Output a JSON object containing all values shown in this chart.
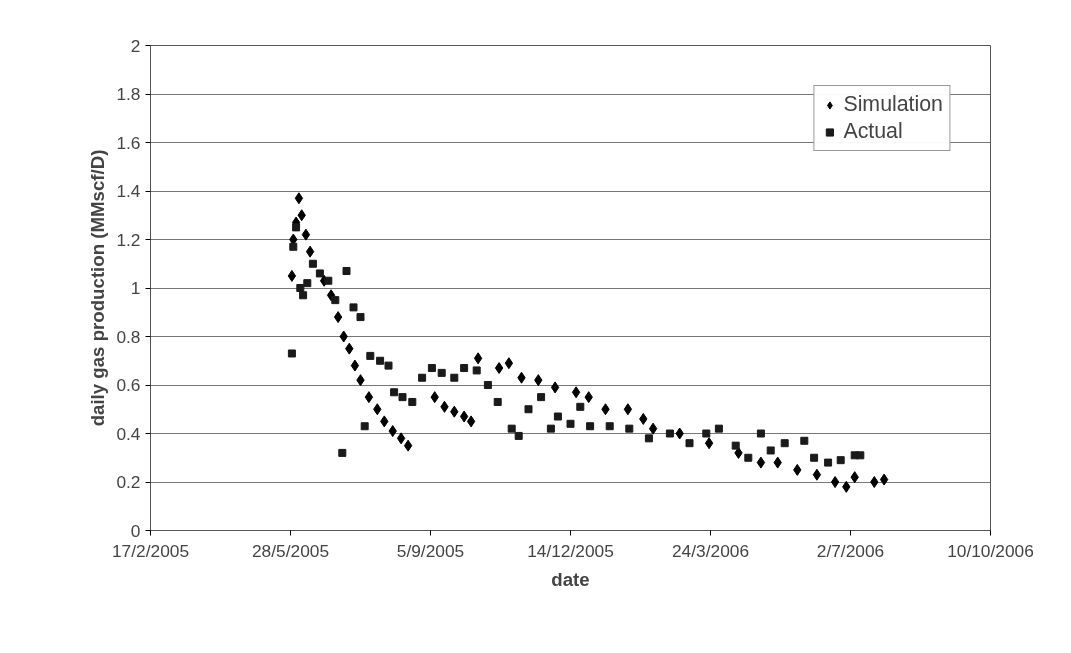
{
  "chart_data": {
    "type": "scatter",
    "xlabel": "date",
    "ylabel": "daily gas production (MMscf/D)",
    "xlim": [
      "2005-02-17",
      "2006-10-10"
    ],
    "xticks": [
      {
        "value": "2005-02-17",
        "label": "17/2/2005"
      },
      {
        "value": "2005-05-28",
        "label": "28/5/2005"
      },
      {
        "value": "2005-09-05",
        "label": "5/9/2005"
      },
      {
        "value": "2005-12-14",
        "label": "14/12/2005"
      },
      {
        "value": "2006-03-24",
        "label": "24/3/2006"
      },
      {
        "value": "2006-07-02",
        "label": "2/7/2006"
      },
      {
        "value": "2006-10-10",
        "label": "10/10/2006"
      }
    ],
    "ylim": [
      0,
      2
    ],
    "yticks": [
      0,
      0.2,
      0.4,
      0.6,
      0.8,
      1,
      1.2,
      1.4,
      1.6,
      1.8,
      2
    ],
    "grid": "y",
    "legend": "top right",
    "series": [
      {
        "name": "Simulation",
        "color": "#000000",
        "marker": "diamond",
        "x": [
          "2005-05-29",
          "2005-05-30",
          "2005-06-01",
          "2005-06-03",
          "2005-06-05",
          "2005-06-08",
          "2005-06-11",
          "2005-06-15",
          "2005-06-21",
          "2005-06-26",
          "2005-07-01",
          "2005-07-05",
          "2005-07-09",
          "2005-07-13",
          "2005-07-17",
          "2005-07-23",
          "2005-07-29",
          "2005-08-03",
          "2005-08-09",
          "2005-08-15",
          "2005-08-20",
          "2005-09-08",
          "2005-09-15",
          "2005-09-22",
          "2005-09-29",
          "2005-10-04",
          "2005-10-09",
          "2005-10-24",
          "2005-10-31",
          "2005-11-09",
          "2005-11-21",
          "2005-12-03",
          "2005-12-18",
          "2005-12-27",
          "2006-01-08",
          "2006-01-24",
          "2006-02-04",
          "2006-02-11",
          "2006-03-02",
          "2006-03-23",
          "2006-04-13",
          "2006-04-29",
          "2006-05-11",
          "2006-05-25",
          "2006-06-08",
          "2006-06-21",
          "2006-06-29",
          "2006-07-05",
          "2006-07-19",
          "2006-07-26"
        ],
        "values": [
          1.05,
          1.2,
          1.27,
          1.37,
          1.3,
          1.22,
          1.15,
          null,
          1.03,
          0.97,
          0.88,
          0.8,
          0.75,
          0.68,
          0.62,
          0.55,
          0.5,
          0.45,
          0.41,
          0.38,
          0.35,
          0.55,
          0.51,
          0.49,
          0.47,
          0.45,
          0.71,
          0.67,
          0.69,
          0.63,
          0.62,
          0.59,
          0.57,
          0.55,
          0.5,
          0.5,
          0.46,
          0.42,
          0.4,
          0.36,
          0.32,
          0.28,
          0.28,
          0.25,
          0.23,
          0.2,
          0.18,
          0.22,
          0.2,
          0.21
        ]
      },
      {
        "name": "Actual",
        "color": "#1a1a1a",
        "marker": "square",
        "x": [
          "2005-05-29",
          "2005-05-30",
          "2005-06-01",
          "2005-06-04",
          "2005-06-06",
          "2005-06-09",
          "2005-06-13",
          "2005-06-18",
          "2005-06-24",
          "2005-06-29",
          "2005-07-04",
          "2005-07-07",
          "2005-07-12",
          "2005-07-17",
          "2005-07-20",
          "2005-07-24",
          "2005-07-31",
          "2005-08-06",
          "2005-08-10",
          "2005-08-16",
          "2005-08-23",
          "2005-08-30",
          "2005-09-06",
          "2005-09-13",
          "2005-09-22",
          "2005-09-29",
          "2005-10-08",
          "2005-10-16",
          "2005-10-23",
          "2005-11-02",
          "2005-11-07",
          "2005-11-14",
          "2005-11-23",
          "2005-11-30",
          "2005-12-05",
          "2005-12-14",
          "2005-12-21",
          "2005-12-28",
          "2006-01-11",
          "2006-01-25",
          "2006-02-08",
          "2006-02-23",
          "2006-03-09",
          "2006-03-21",
          "2006-03-30",
          "2006-04-11",
          "2006-04-20",
          "2006-04-29",
          "2006-05-06",
          "2006-05-16",
          "2006-05-30",
          "2006-06-06",
          "2006-06-16",
          "2006-06-25",
          "2006-07-05",
          "2006-07-09"
        ],
        "values": [
          0.73,
          1.17,
          1.25,
          1.0,
          0.97,
          1.02,
          1.1,
          1.06,
          1.03,
          0.95,
          0.32,
          1.07,
          0.92,
          0.88,
          0.43,
          0.72,
          0.7,
          0.68,
          0.57,
          0.55,
          0.53,
          0.63,
          0.67,
          0.65,
          0.63,
          0.67,
          0.66,
          0.6,
          0.53,
          0.42,
          0.39,
          0.5,
          0.55,
          0.42,
          0.47,
          0.44,
          0.51,
          0.43,
          0.43,
          0.42,
          0.38,
          0.4,
          0.36,
          0.4,
          0.42,
          0.35,
          0.3,
          0.4,
          0.33,
          0.36,
          0.37,
          0.3,
          0.28,
          0.29,
          0.31,
          0.31
        ]
      }
    ]
  }
}
